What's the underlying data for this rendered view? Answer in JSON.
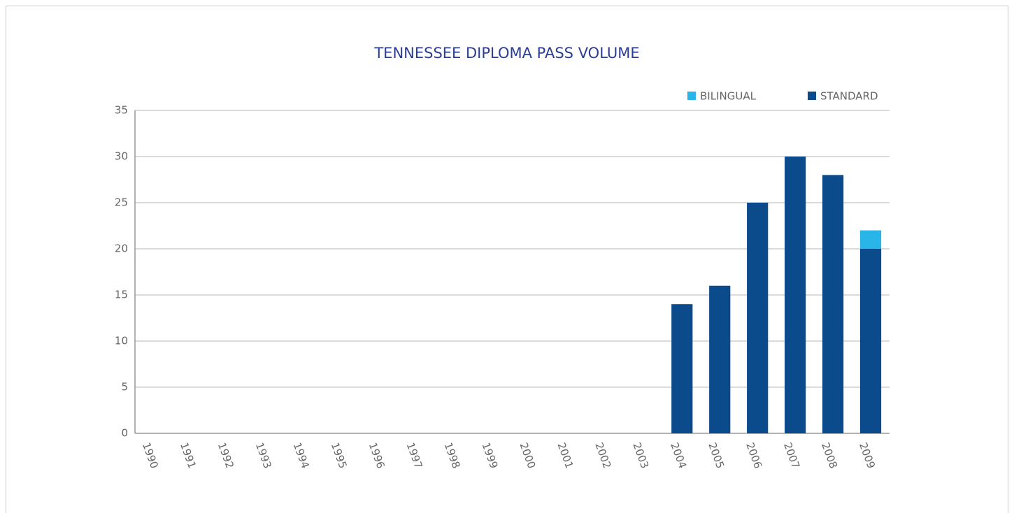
{
  "chart_data": {
    "type": "stacked_bar",
    "title": "TENNESSEE DIPLOMA PASS VOLUME",
    "categories": [
      "1990",
      "1991",
      "1992",
      "1993",
      "1994",
      "1995",
      "1996",
      "1997",
      "1998",
      "1999",
      "2000",
      "2001",
      "2002",
      "2003",
      "2004",
      "2005",
      "2006",
      "2007",
      "2008",
      "2009"
    ],
    "series": [
      {
        "name": "STANDARD",
        "color": "#0b4a8b",
        "values": [
          0,
          0,
          0,
          0,
          0,
          0,
          0,
          0,
          0,
          0,
          0,
          0,
          0,
          0,
          14,
          16,
          25,
          30,
          28,
          20
        ]
      },
      {
        "name": "BILINGUAL",
        "color": "#29b5e8",
        "values": [
          0,
          0,
          0,
          0,
          0,
          0,
          0,
          0,
          0,
          0,
          0,
          0,
          0,
          0,
          0,
          0,
          0,
          0,
          0,
          2
        ]
      }
    ],
    "ylim": [
      0,
      35
    ],
    "yticks": [
      0,
      5,
      10,
      15,
      20,
      25,
      30,
      35
    ],
    "grid": true,
    "legend": "top-right"
  }
}
